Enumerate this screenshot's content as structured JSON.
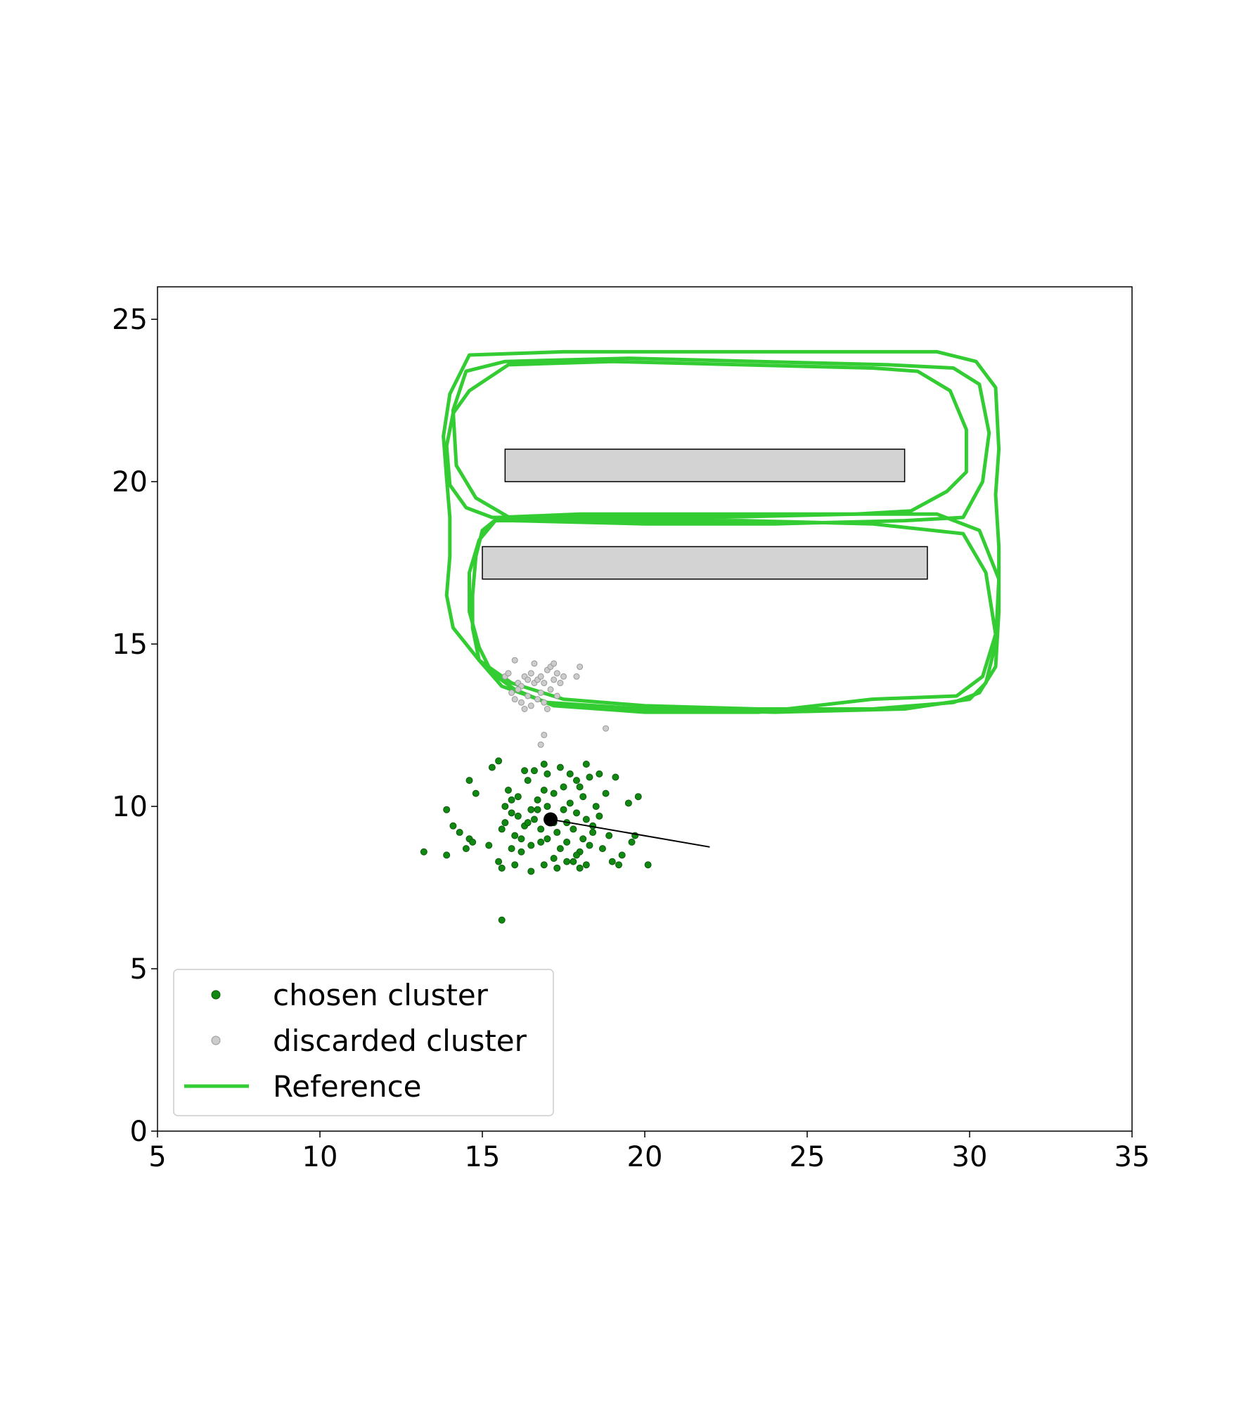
{
  "chart_data": {
    "type": "scatter",
    "title": "",
    "xlabel": "",
    "ylabel": "",
    "xlim": [
      5,
      35
    ],
    "ylim": [
      0,
      26
    ],
    "xticks": [
      5,
      10,
      15,
      20,
      25,
      30,
      35
    ],
    "yticks": [
      0,
      5,
      10,
      15,
      20,
      25
    ],
    "grid": false,
    "legend": {
      "placement": "lower-left",
      "entries": [
        {
          "label": "chosen cluster",
          "marker": "dot",
          "color": "#118811"
        },
        {
          "label": "discarded cluster",
          "marker": "dot",
          "color": "#cccccc"
        },
        {
          "label": "Reference",
          "marker": "line",
          "color": "#33cc33"
        }
      ]
    },
    "obstacles": [
      {
        "x0": 15.7,
        "x1": 28.0,
        "y0": 20.0,
        "y1": 21.0,
        "fill": "#d3d3d3"
      },
      {
        "x0": 15.0,
        "x1": 28.7,
        "y0": 17.0,
        "y1": 18.0,
        "fill": "#d3d3d3"
      }
    ],
    "estimate": {
      "point": [
        17.1,
        9.6
      ],
      "heading_to": [
        22.0,
        8.75
      ],
      "color": "#000000"
    },
    "chosen_cluster": {
      "name": "chosen cluster",
      "color": "#118811",
      "points": [
        [
          13.2,
          8.6
        ],
        [
          13.9,
          8.5
        ],
        [
          13.9,
          9.9
        ],
        [
          14.1,
          9.4
        ],
        [
          14.3,
          9.2
        ],
        [
          14.5,
          8.7
        ],
        [
          14.6,
          9.0
        ],
        [
          14.7,
          8.9
        ],
        [
          14.6,
          10.8
        ],
        [
          14.8,
          10.4
        ],
        [
          15.2,
          8.8
        ],
        [
          15.3,
          11.2
        ],
        [
          15.5,
          11.4
        ],
        [
          15.5,
          8.3
        ],
        [
          15.6,
          8.1
        ],
        [
          15.6,
          9.3
        ],
        [
          15.7,
          9.5
        ],
        [
          15.7,
          10.0
        ],
        [
          15.8,
          10.5
        ],
        [
          15.9,
          9.8
        ],
        [
          15.9,
          8.7
        ],
        [
          16.0,
          8.2
        ],
        [
          16.0,
          9.1
        ],
        [
          16.1,
          9.7
        ],
        [
          16.1,
          10.3
        ],
        [
          16.2,
          8.6
        ],
        [
          16.3,
          9.4
        ],
        [
          16.3,
          11.1
        ],
        [
          16.4,
          10.8
        ],
        [
          16.5,
          9.9
        ],
        [
          16.5,
          8.0
        ],
        [
          16.6,
          9.6
        ],
        [
          16.6,
          11.1
        ],
        [
          16.7,
          10.2
        ],
        [
          16.8,
          8.9
        ],
        [
          16.8,
          9.3
        ],
        [
          16.9,
          8.2
        ],
        [
          16.9,
          10.5
        ],
        [
          17.0,
          11.0
        ],
        [
          17.0,
          9.0
        ],
        [
          17.1,
          9.7
        ],
        [
          17.2,
          8.4
        ],
        [
          17.2,
          10.4
        ],
        [
          17.3,
          9.2
        ],
        [
          17.4,
          8.7
        ],
        [
          17.4,
          11.2
        ],
        [
          17.5,
          9.9
        ],
        [
          17.5,
          10.6
        ],
        [
          17.6,
          8.9
        ],
        [
          17.6,
          9.5
        ],
        [
          17.7,
          10.1
        ],
        [
          17.7,
          11.0
        ],
        [
          17.8,
          8.3
        ],
        [
          17.8,
          9.3
        ],
        [
          17.9,
          9.8
        ],
        [
          17.9,
          10.8
        ],
        [
          18.0,
          8.1
        ],
        [
          18.0,
          8.6
        ],
        [
          18.1,
          9.0
        ],
        [
          18.1,
          10.3
        ],
        [
          18.2,
          9.6
        ],
        [
          18.2,
          11.3
        ],
        [
          18.3,
          8.8
        ],
        [
          18.3,
          10.9
        ],
        [
          18.4,
          9.2
        ],
        [
          18.5,
          10.0
        ],
        [
          18.6,
          11.0
        ],
        [
          18.7,
          8.7
        ],
        [
          18.8,
          10.4
        ],
        [
          18.9,
          9.1
        ],
        [
          19.0,
          8.3
        ],
        [
          19.1,
          10.9
        ],
        [
          19.2,
          8.2
        ],
        [
          19.3,
          8.5
        ],
        [
          19.5,
          10.1
        ],
        [
          19.6,
          8.9
        ],
        [
          19.7,
          9.1
        ],
        [
          19.8,
          10.3
        ],
        [
          20.1,
          8.2
        ],
        [
          15.6,
          6.5
        ],
        [
          16.2,
          9.0
        ],
        [
          16.7,
          9.9
        ],
        [
          17.3,
          8.1
        ],
        [
          17.9,
          8.5
        ],
        [
          18.4,
          9.4
        ],
        [
          17.0,
          10.0
        ],
        [
          16.4,
          9.5
        ],
        [
          18.0,
          10.6
        ],
        [
          17.6,
          8.3
        ],
        [
          16.9,
          11.3
        ],
        [
          18.6,
          9.7
        ],
        [
          15.9,
          10.2
        ],
        [
          17.2,
          9.5
        ],
        [
          16.5,
          8.8
        ],
        [
          18.2,
          8.2
        ]
      ]
    },
    "discarded_cluster": {
      "name": "discarded cluster",
      "color": "#cccccc",
      "points": [
        [
          15.7,
          14.0
        ],
        [
          15.8,
          14.1
        ],
        [
          15.9,
          13.5
        ],
        [
          16.0,
          14.5
        ],
        [
          16.1,
          13.8
        ],
        [
          16.2,
          13.2
        ],
        [
          16.2,
          13.7
        ],
        [
          16.3,
          13.0
        ],
        [
          16.3,
          14.0
        ],
        [
          16.4,
          13.4
        ],
        [
          16.5,
          14.1
        ],
        [
          16.5,
          13.1
        ],
        [
          16.6,
          13.8
        ],
        [
          16.6,
          14.4
        ],
        [
          16.7,
          13.3
        ],
        [
          16.7,
          13.9
        ],
        [
          16.8,
          13.5
        ],
        [
          16.8,
          14.0
        ],
        [
          16.9,
          13.2
        ],
        [
          16.9,
          13.8
        ],
        [
          17.0,
          14.2
        ],
        [
          17.0,
          13.0
        ],
        [
          17.1,
          13.6
        ],
        [
          17.1,
          14.3
        ],
        [
          17.2,
          13.9
        ],
        [
          17.3,
          13.4
        ],
        [
          17.3,
          14.1
        ],
        [
          17.4,
          13.8
        ],
        [
          17.5,
          14.0
        ],
        [
          16.1,
          13.6
        ],
        [
          16.4,
          13.9
        ],
        [
          16.9,
          12.2
        ],
        [
          16.8,
          11.9
        ],
        [
          18.0,
          14.3
        ],
        [
          17.9,
          14.0
        ],
        [
          18.8,
          12.4
        ],
        [
          17.2,
          14.4
        ],
        [
          16.0,
          13.3
        ]
      ]
    },
    "reference": {
      "name": "Reference",
      "color": "#33cc33",
      "paths": [
        [
          [
            14.6,
            22.8
          ],
          [
            15.8,
            23.6
          ],
          [
            19.0,
            23.7
          ],
          [
            23.0,
            23.6
          ],
          [
            27.0,
            23.5
          ],
          [
            28.4,
            23.4
          ],
          [
            29.4,
            22.8
          ],
          [
            29.9,
            21.6
          ],
          [
            29.9,
            20.3
          ],
          [
            29.3,
            19.7
          ],
          [
            28.2,
            19.1
          ],
          [
            26.5,
            19.0
          ],
          [
            22.0,
            18.9
          ],
          [
            18.0,
            18.9
          ],
          [
            15.3,
            18.9
          ],
          [
            14.5,
            19.2
          ],
          [
            14.0,
            19.9
          ],
          [
            13.9,
            21.1
          ],
          [
            14.1,
            22.1
          ],
          [
            14.6,
            22.8
          ]
        ],
        [
          [
            14.1,
            22.2
          ],
          [
            14.5,
            23.4
          ],
          [
            15.7,
            23.7
          ],
          [
            19.5,
            23.8
          ],
          [
            23.5,
            23.7
          ],
          [
            27.5,
            23.6
          ],
          [
            29.5,
            23.5
          ],
          [
            30.3,
            23.0
          ],
          [
            30.6,
            21.5
          ],
          [
            30.4,
            20.0
          ],
          [
            29.8,
            18.9
          ],
          [
            28.0,
            18.8
          ],
          [
            24.0,
            18.7
          ],
          [
            20.0,
            18.7
          ],
          [
            16.0,
            18.8
          ],
          [
            14.8,
            19.5
          ],
          [
            14.2,
            20.5
          ],
          [
            14.1,
            22.2
          ]
        ],
        [
          [
            14.0,
            22.7
          ],
          [
            14.6,
            23.9
          ],
          [
            17.5,
            24.0
          ],
          [
            22.0,
            24.0
          ],
          [
            26.0,
            24.0
          ],
          [
            29.0,
            24.0
          ],
          [
            30.2,
            23.7
          ],
          [
            30.8,
            22.9
          ],
          [
            30.9,
            21.0
          ],
          [
            30.8,
            19.6
          ],
          [
            30.9,
            18.0
          ],
          [
            30.9,
            16.0
          ],
          [
            30.8,
            14.3
          ],
          [
            30.3,
            13.5
          ],
          [
            29.5,
            13.2
          ],
          [
            27.0,
            13.0
          ],
          [
            23.5,
            13.0
          ],
          [
            20.0,
            13.1
          ],
          [
            17.5,
            13.3
          ],
          [
            15.9,
            13.8
          ],
          [
            14.9,
            14.5
          ],
          [
            14.1,
            15.5
          ],
          [
            13.9,
            16.5
          ],
          [
            14.0,
            17.7
          ],
          [
            14.0,
            18.9
          ],
          [
            13.9,
            20.1
          ],
          [
            13.8,
            21.4
          ],
          [
            14.0,
            22.7
          ]
        ],
        [
          [
            15.0,
            18.5
          ],
          [
            15.5,
            18.9
          ],
          [
            18.0,
            19.0
          ],
          [
            22.0,
            19.0
          ],
          [
            26.0,
            19.0
          ],
          [
            29.0,
            19.0
          ],
          [
            30.3,
            18.5
          ],
          [
            30.9,
            17.0
          ],
          [
            30.8,
            15.0
          ],
          [
            30.5,
            13.8
          ],
          [
            30.0,
            13.3
          ],
          [
            28.0,
            13.0
          ],
          [
            24.0,
            12.9
          ],
          [
            20.0,
            13.0
          ],
          [
            17.0,
            13.2
          ],
          [
            15.6,
            13.7
          ],
          [
            14.9,
            14.5
          ],
          [
            14.7,
            15.5
          ],
          [
            14.7,
            16.5
          ],
          [
            14.8,
            17.7
          ],
          [
            15.0,
            18.5
          ]
        ],
        [
          [
            14.9,
            18.2
          ],
          [
            15.4,
            18.8
          ],
          [
            18.5,
            18.8
          ],
          [
            23.0,
            18.8
          ],
          [
            27.0,
            18.7
          ],
          [
            29.8,
            18.4
          ],
          [
            30.5,
            17.2
          ],
          [
            30.8,
            15.3
          ],
          [
            30.4,
            14.0
          ],
          [
            29.6,
            13.4
          ],
          [
            27.0,
            13.3
          ],
          [
            23.5,
            12.9
          ],
          [
            20.0,
            12.9
          ],
          [
            17.2,
            13.1
          ],
          [
            16.0,
            13.6
          ],
          [
            15.3,
            14.1
          ],
          [
            14.9,
            14.9
          ],
          [
            14.6,
            16.0
          ],
          [
            14.6,
            17.2
          ],
          [
            14.9,
            18.2
          ]
        ]
      ]
    }
  }
}
